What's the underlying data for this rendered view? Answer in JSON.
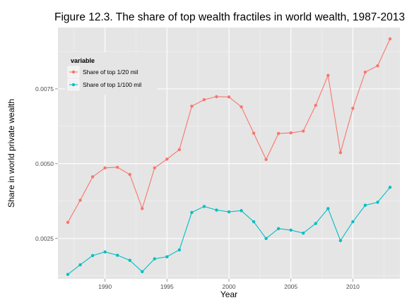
{
  "chart_data": {
    "type": "line",
    "title": "Figure 12.3. The share of top wealth fractiles in world wealth, 1987-2013",
    "xlabel": "Year",
    "ylabel": "Share in world private wealth",
    "x": [
      1987,
      1988,
      1989,
      1990,
      1991,
      1992,
      1993,
      1994,
      1995,
      1996,
      1997,
      1998,
      1999,
      2000,
      2001,
      2002,
      2003,
      2004,
      2005,
      2006,
      2007,
      2008,
      2009,
      2010,
      2011,
      2012,
      2013
    ],
    "xlim": [
      1986.2,
      2013.8
    ],
    "ylim": [
      0.00115,
      0.00955
    ],
    "x_ticks": [
      1990,
      1995,
      2000,
      2005,
      2010
    ],
    "x_tick_labels": [
      "1990",
      "1995",
      "2000",
      "2005",
      "2010"
    ],
    "y_ticks": [
      0.0025,
      0.005,
      0.0075
    ],
    "y_tick_labels": [
      "0.0025",
      "0.0050",
      "0.0075"
    ],
    "grid": true,
    "legend": {
      "title": "variable",
      "placement": "top-left"
    },
    "series": [
      {
        "name": "Share of top 1/20 mil",
        "color": "#F8766D",
        "values": [
          0.00304,
          0.00378,
          0.00456,
          0.00486,
          0.00488,
          0.00464,
          0.0035,
          0.00486,
          0.00515,
          0.00547,
          0.00692,
          0.00714,
          0.00724,
          0.00723,
          0.0069,
          0.00602,
          0.00514,
          0.00601,
          0.00603,
          0.00609,
          0.00695,
          0.00795,
          0.00537,
          0.00685,
          0.00806,
          0.00827,
          0.00917
        ]
      },
      {
        "name": "Share of top 1/100 mil",
        "color": "#00BFC4",
        "values": [
          0.0013,
          0.00162,
          0.00193,
          0.00205,
          0.00194,
          0.00177,
          0.00139,
          0.00182,
          0.00189,
          0.00212,
          0.00337,
          0.00357,
          0.00345,
          0.00339,
          0.00343,
          0.00306,
          0.0025,
          0.00283,
          0.00278,
          0.00268,
          0.003,
          0.0035,
          0.00243,
          0.00306,
          0.00361,
          0.00371,
          0.00421
        ]
      }
    ]
  }
}
